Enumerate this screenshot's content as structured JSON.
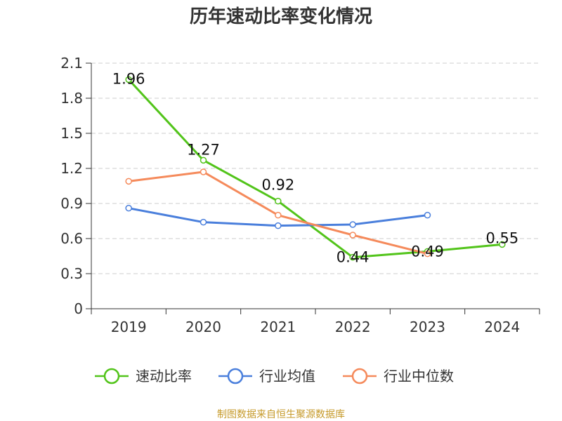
{
  "chart_data": {
    "type": "line",
    "title": "历年速动比率变化情况",
    "xlabel": "",
    "ylabel": "",
    "categories": [
      "2019",
      "2020",
      "2021",
      "2022",
      "2023",
      "2024"
    ],
    "ylim": [
      0,
      2.1
    ],
    "yticks": [
      "0",
      "0.3",
      "0.6",
      "0.9",
      "1.2",
      "1.5",
      "1.8",
      "2.1"
    ],
    "grid": true,
    "legend_position": "bottom",
    "series": [
      {
        "name": "速动比率",
        "color": "#52c41a",
        "values": [
          1.96,
          1.27,
          0.92,
          0.44,
          0.49,
          0.55
        ],
        "labels": [
          "1.96",
          "1.27",
          "0.92",
          "0.44",
          "0.49",
          "0.55"
        ]
      },
      {
        "name": "行业均值",
        "color": "#4a7fdc",
        "values": [
          0.86,
          0.74,
          0.71,
          0.72,
          0.8,
          null
        ]
      },
      {
        "name": "行业中位数",
        "color": "#f58a5b",
        "values": [
          1.09,
          1.17,
          0.8,
          0.63,
          0.47,
          null
        ]
      }
    ],
    "source": "制图数据来自恒生聚源数据库"
  }
}
